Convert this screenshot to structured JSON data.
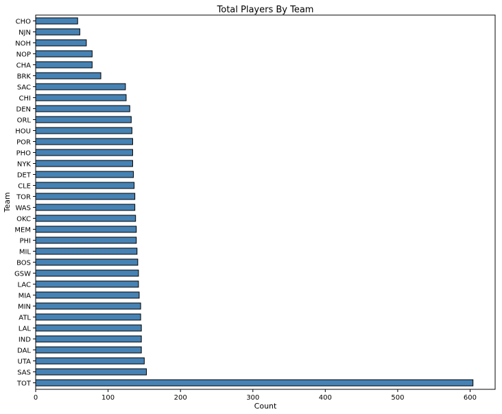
{
  "chart_data": {
    "type": "bar",
    "orientation": "horizontal",
    "title": "Total Players By Team",
    "xlabel": "Count",
    "ylabel": "Team",
    "xlim": [
      0,
      630
    ],
    "xticks": [
      0,
      100,
      200,
      300,
      400,
      500,
      600
    ],
    "grid": false,
    "legend": "none",
    "bar_color": "#4682b4",
    "bar_edge_color": "#000000",
    "categories": [
      "CHO",
      "NJN",
      "NOH",
      "NOP",
      "CHA",
      "BRK",
      "SAC",
      "CHI",
      "DEN",
      "ORL",
      "HOU",
      "POR",
      "PHO",
      "NYK",
      "DET",
      "CLE",
      "TOR",
      "WAS",
      "OKC",
      "MEM",
      "PHI",
      "MIL",
      "BOS",
      "GSW",
      "LAC",
      "MIA",
      "MIN",
      "ATL",
      "LAL",
      "IND",
      "DAL",
      "UTA",
      "SAS",
      "TOT"
    ],
    "values": [
      58,
      61,
      70,
      78,
      78,
      90,
      124,
      125,
      130,
      132,
      133,
      134,
      134,
      134,
      135,
      136,
      137,
      137,
      138,
      139,
      139,
      140,
      141,
      142,
      142,
      143,
      145,
      145,
      146,
      146,
      146,
      150,
      153,
      604
    ]
  }
}
